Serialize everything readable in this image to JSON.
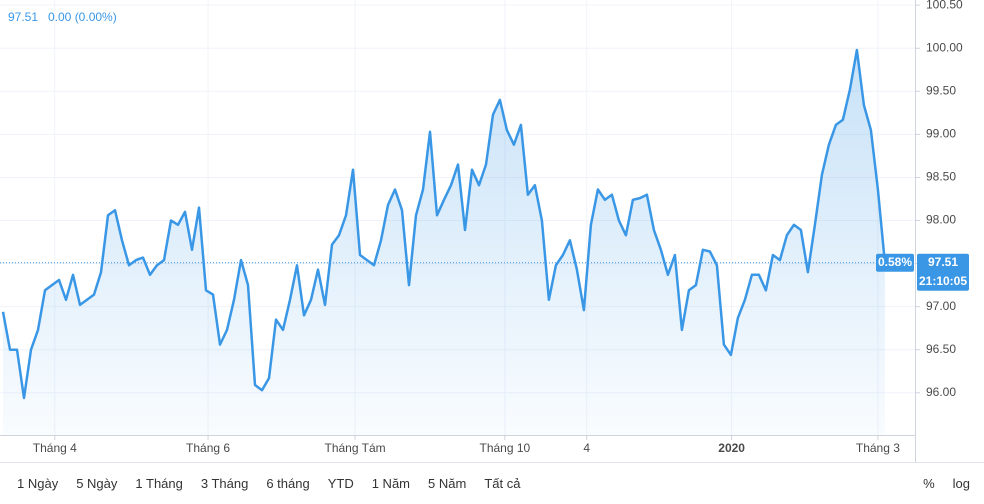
{
  "header": {
    "price": "97.51",
    "change": "0.00 (0.00%)"
  },
  "chart_data": {
    "type": "area",
    "series": [
      {
        "color": "#3a97e6",
        "values": [
          96.94,
          96.5,
          96.5,
          95.94,
          96.5,
          96.73,
          97.19,
          97.25,
          97.31,
          97.08,
          97.37,
          97.02,
          97.08,
          97.14,
          97.4,
          98.06,
          98.12,
          97.77,
          97.48,
          97.54,
          97.57,
          97.37,
          97.48,
          97.54,
          98.0,
          97.95,
          98.1,
          97.66,
          98.15,
          97.19,
          97.14,
          96.56,
          96.73,
          97.08,
          97.54,
          97.25,
          96.09,
          96.03,
          96.17,
          96.85,
          96.73,
          97.08,
          97.48,
          96.9,
          97.08,
          97.43,
          97.02,
          97.72,
          97.83,
          98.06,
          98.59,
          97.6,
          97.54,
          97.48,
          97.77,
          98.18,
          98.36,
          98.12,
          97.25,
          98.06,
          98.36,
          99.03,
          98.06,
          98.24,
          98.41,
          98.65,
          97.89,
          98.59,
          98.41,
          98.65,
          99.23,
          99.4,
          99.05,
          98.88,
          99.11,
          98.3,
          98.41,
          98.0,
          97.08,
          97.48,
          97.6,
          97.77,
          97.43,
          96.96,
          97.95,
          98.36,
          98.24,
          98.3,
          98.0,
          97.83,
          98.24,
          98.26,
          98.3,
          97.89,
          97.66,
          97.37,
          97.6,
          96.73,
          97.19,
          97.25,
          97.66,
          97.64,
          97.48,
          96.56,
          96.44,
          96.87,
          97.08,
          97.37,
          97.37,
          97.19,
          97.6,
          97.54,
          97.83,
          97.95,
          97.89,
          97.4,
          97.95,
          98.53,
          98.88,
          99.11,
          99.17,
          99.52,
          99.98,
          99.34,
          99.05,
          98.36,
          97.51
        ]
      }
    ],
    "ylim": [
      95.51,
      100.56
    ],
    "yticks": [
      {
        "value": 96,
        "label": "96.00"
      },
      {
        "value": 96.5,
        "label": "96.50"
      },
      {
        "value": 97,
        "label": "97.00"
      },
      {
        "value": 97.5,
        "label": "97.50"
      },
      {
        "value": 98,
        "label": "98.00"
      },
      {
        "value": 98.5,
        "label": "98.50"
      },
      {
        "value": 99,
        "label": "99.00"
      },
      {
        "value": 99.5,
        "label": "99.50"
      },
      {
        "value": 100,
        "label": "100.00"
      },
      {
        "value": 100.5,
        "label": "100.50"
      }
    ],
    "xlim": [
      -0.43,
      130.3
    ],
    "xticks": [
      {
        "value": 7.4,
        "label": "Tháng 4"
      },
      {
        "value": 29.3,
        "label": "Tháng 6"
      },
      {
        "value": 50.3,
        "label": "Tháng Tám"
      },
      {
        "value": 71.7,
        "label": "Tháng 10"
      },
      {
        "value": 83.4,
        "label": "4"
      },
      {
        "value": 104.1,
        "label": "2020"
      },
      {
        "value": 125,
        "label": "Tháng 3"
      }
    ],
    "last_price": {
      "value": 97.51,
      "label": "97.51",
      "change": "0.58%",
      "time": "21:10:05"
    }
  },
  "toolbar": {
    "ranges": [
      "1 Ngày",
      "5 Ngày",
      "1 Tháng",
      "3 Tháng",
      "6 tháng",
      "YTD",
      "1 Năm",
      "5 Năm",
      "Tất cả"
    ],
    "percent": "%",
    "log": "log"
  }
}
